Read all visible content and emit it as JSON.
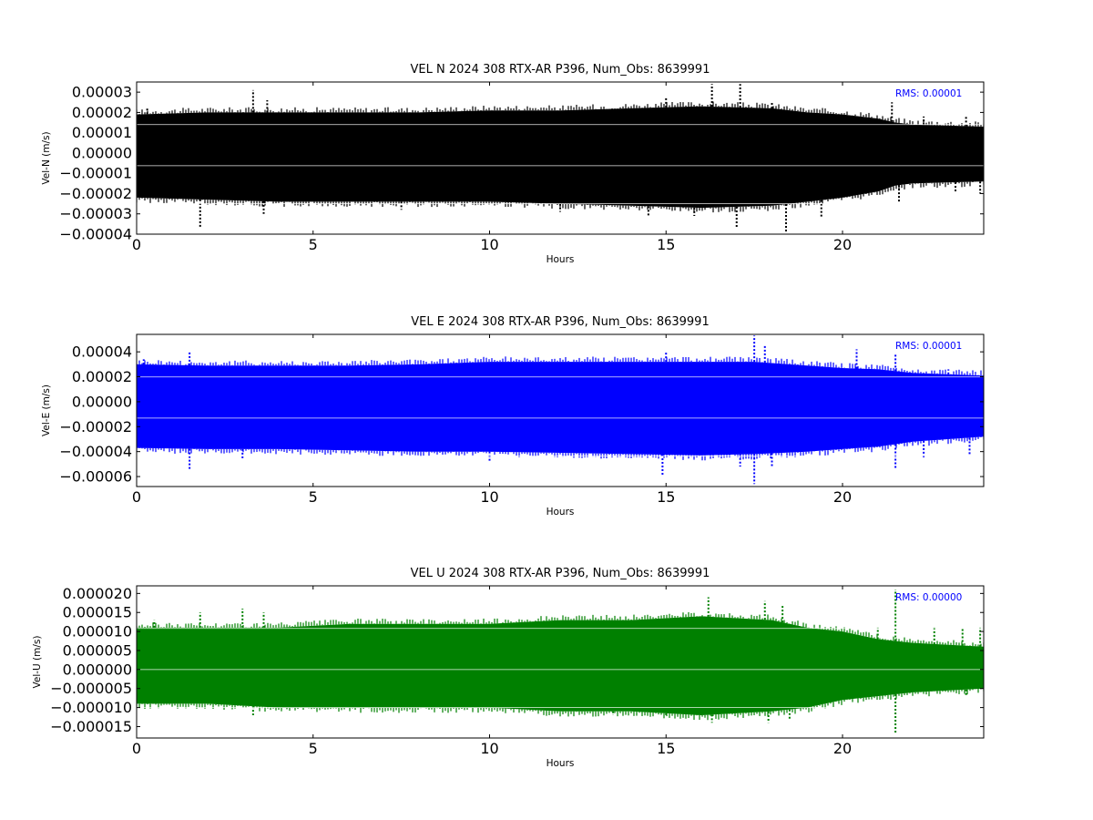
{
  "chart_data": [
    {
      "type": "scatter",
      "title": "VEL N 2024 308 RTX-AR  P396, Num_Obs: 8639991",
      "xlabel": "Hours",
      "ylabel": "Vel-N (m/s)",
      "xlim": [
        0,
        24
      ],
      "ylim": [
        -4e-05,
        3.5e-05
      ],
      "x_ticks": [
        0,
        5,
        10,
        15,
        20
      ],
      "x_tick_labels": [
        "0",
        "5",
        "10",
        "15",
        "20"
      ],
      "y_ticks": [
        3e-05,
        2e-05,
        1e-05,
        0.0,
        -1e-05,
        -2e-05,
        -3e-05,
        -4e-05
      ],
      "y_tick_labels": [
        "0.00003",
        "0.00002",
        "0.00001",
        "0.00000",
        "−0.00001",
        "−0.00002",
        "−0.00003",
        "−0.00004"
      ],
      "color": "#000000",
      "annotation": "RMS:  0.00001",
      "annotation_color": "#0000ff",
      "band_envelope": {
        "x": [
          0,
          2,
          4,
          6,
          8,
          10,
          12,
          14,
          16,
          18,
          19,
          20,
          21,
          21.5,
          22,
          24
        ],
        "upper": [
          1.9e-05,
          2e-05,
          2e-05,
          2e-05,
          2e-05,
          2.1e-05,
          2.1e-05,
          2.2e-05,
          2.3e-05,
          2.2e-05,
          2e-05,
          1.9e-05,
          1.7e-05,
          1.5e-05,
          1.4e-05,
          1.3e-05
        ],
        "lower": [
          -2.2e-05,
          -2.3e-05,
          -2.4e-05,
          -2.4e-05,
          -2.4e-05,
          -2.4e-05,
          -2.5e-05,
          -2.6e-05,
          -2.7e-05,
          -2.6e-05,
          -2.4e-05,
          -2.2e-05,
          -1.9e-05,
          -1.6e-05,
          -1.5e-05,
          -1.4e-05
        ]
      },
      "spikes": [
        {
          "x": 0.3,
          "y": 2.2e-05
        },
        {
          "x": 1.8,
          "y": -3.7e-05
        },
        {
          "x": 3.3,
          "y": 3.1e-05
        },
        {
          "x": 3.6,
          "y": -3e-05
        },
        {
          "x": 3.7,
          "y": 2.6e-05
        },
        {
          "x": 7.5,
          "y": -2.8e-05
        },
        {
          "x": 12.0,
          "y": -2.9e-05
        },
        {
          "x": 14.5,
          "y": -3.1e-05
        },
        {
          "x": 15.0,
          "y": 2.7e-05
        },
        {
          "x": 15.8,
          "y": -3.1e-05
        },
        {
          "x": 16.3,
          "y": 3.4e-05
        },
        {
          "x": 17.0,
          "y": -3.7e-05
        },
        {
          "x": 17.1,
          "y": 3.4e-05
        },
        {
          "x": 18.0,
          "y": 2.5e-05
        },
        {
          "x": 18.4,
          "y": -3.9e-05
        },
        {
          "x": 19.4,
          "y": -3.2e-05
        },
        {
          "x": 21.4,
          "y": 2.5e-05
        },
        {
          "x": 21.6,
          "y": -2.4e-05
        },
        {
          "x": 22.3,
          "y": 1.8e-05
        },
        {
          "x": 23.2,
          "y": -1.9e-05
        },
        {
          "x": 23.5,
          "y": 1.8e-05
        },
        {
          "x": 23.9,
          "y": -2e-05
        }
      ]
    },
    {
      "type": "scatter",
      "title": "VEL E 2024 308 RTX-AR  P396, Num_Obs: 8639991",
      "xlabel": "Hours",
      "ylabel": "Vel-E (m/s)",
      "xlim": [
        0,
        24
      ],
      "ylim": [
        -6.8e-05,
        5.4e-05
      ],
      "x_ticks": [
        0,
        5,
        10,
        15,
        20
      ],
      "x_tick_labels": [
        "0",
        "5",
        "10",
        "15",
        "20"
      ],
      "y_ticks": [
        4e-05,
        2e-05,
        0.0,
        -2e-05,
        -4e-05,
        -6e-05
      ],
      "y_tick_labels": [
        "0.00004",
        "0.00002",
        "0.00000",
        "−0.00002",
        "−0.00004",
        "−0.00006"
      ],
      "color": "#0000ff",
      "annotation": "RMS:  0.00001",
      "annotation_color": "#0000ff",
      "band_envelope": {
        "x": [
          0,
          2,
          4,
          6,
          8,
          10,
          12,
          14,
          16,
          17.5,
          19,
          20,
          21,
          22,
          24
        ],
        "upper": [
          3e-05,
          2.9e-05,
          2.9e-05,
          2.9e-05,
          3e-05,
          3.2e-05,
          3.2e-05,
          3.2e-05,
          3.2e-05,
          3.2e-05,
          2.9e-05,
          2.7e-05,
          2.6e-05,
          2.3e-05,
          2.1e-05
        ],
        "lower": [
          -3.7e-05,
          -3.8e-05,
          -3.8e-05,
          -3.9e-05,
          -4e-05,
          -4e-05,
          -4.1e-05,
          -4.2e-05,
          -4.3e-05,
          -4.2e-05,
          -4e-05,
          -3.8e-05,
          -3.6e-05,
          -3.2e-05,
          -2.8e-05
        ]
      },
      "spikes": [
        {
          "x": 0.2,
          "y": 3.4e-05
        },
        {
          "x": 1.5,
          "y": -5.4e-05
        },
        {
          "x": 1.5,
          "y": 4e-05
        },
        {
          "x": 3.0,
          "y": -4.6e-05
        },
        {
          "x": 10.0,
          "y": -4.8e-05
        },
        {
          "x": 14.9,
          "y": -6e-05
        },
        {
          "x": 15.0,
          "y": 4e-05
        },
        {
          "x": 17.1,
          "y": -5.2e-05
        },
        {
          "x": 17.5,
          "y": 5.3e-05
        },
        {
          "x": 17.5,
          "y": -6.6e-05
        },
        {
          "x": 17.8,
          "y": 4.5e-05
        },
        {
          "x": 18.0,
          "y": -5.2e-05
        },
        {
          "x": 20.4,
          "y": 4.2e-05
        },
        {
          "x": 21.5,
          "y": 3.8e-05
        },
        {
          "x": 21.5,
          "y": -5.4e-05
        },
        {
          "x": 22.3,
          "y": -4.6e-05
        },
        {
          "x": 23.0,
          "y": 2.6e-05
        },
        {
          "x": 23.6,
          "y": -4.2e-05
        }
      ]
    },
    {
      "type": "scatter",
      "title": "VEL U 2024 308 RTX-AR  P396, Num_Obs: 8639991",
      "xlabel": "Hours",
      "ylabel": "Vel-U (m/s)",
      "xlim": [
        0,
        24
      ],
      "ylim": [
        -1.8e-05,
        2.2e-05
      ],
      "x_ticks": [
        0,
        5,
        10,
        15,
        20
      ],
      "x_tick_labels": [
        "0",
        "5",
        "10",
        "15",
        "20"
      ],
      "y_ticks": [
        2e-05,
        1.5e-05,
        1e-05,
        5e-06,
        0.0,
        -5e-06,
        -1e-05,
        -1.5e-05
      ],
      "y_tick_labels": [
        "0.000020",
        "0.000015",
        "0.000010",
        "0.000005",
        "0.000000",
        "−0.000005",
        "−0.000010",
        "−0.000015"
      ],
      "color": "#008000",
      "annotation": "RMS:  0.00000",
      "annotation_color": "#0000ff",
      "band_envelope": {
        "x": [
          0,
          2,
          4,
          6,
          8,
          10,
          12,
          14,
          16,
          18,
          19,
          20,
          21,
          22,
          24
        ],
        "upper": [
          1.1e-05,
          1.1e-05,
          1.1e-05,
          1.2e-05,
          1.2e-05,
          1.2e-05,
          1.3e-05,
          1.3e-05,
          1.4e-05,
          1.3e-05,
          1.1e-05,
          1e-05,
          8e-06,
          7e-06,
          6e-06
        ],
        "lower": [
          -9e-06,
          -9e-06,
          -1e-05,
          -1e-05,
          -1e-05,
          -1e-05,
          -1.1e-05,
          -1.1e-05,
          -1.2e-05,
          -1.1e-05,
          -1e-05,
          -8e-06,
          -7e-06,
          -6e-06,
          -5e-06
        ]
      },
      "spikes": [
        {
          "x": 0.5,
          "y": 1.3e-05
        },
        {
          "x": 1.8,
          "y": 1.5e-05
        },
        {
          "x": 3.0,
          "y": 1.6e-05
        },
        {
          "x": 3.3,
          "y": -1.2e-05
        },
        {
          "x": 3.6,
          "y": 1.5e-05
        },
        {
          "x": 13.5,
          "y": -1.2e-05
        },
        {
          "x": 15.0,
          "y": -1.2e-05
        },
        {
          "x": 16.2,
          "y": 1.9e-05
        },
        {
          "x": 16.3,
          "y": -1.4e-05
        },
        {
          "x": 17.8,
          "y": 1.8e-05
        },
        {
          "x": 17.9,
          "y": -1.4e-05
        },
        {
          "x": 18.3,
          "y": 1.7e-05
        },
        {
          "x": 18.5,
          "y": -1.3e-05
        },
        {
          "x": 21.0,
          "y": 1.1e-05
        },
        {
          "x": 21.5,
          "y": 2.1e-05
        },
        {
          "x": 21.5,
          "y": -1.7e-05
        },
        {
          "x": 22.6,
          "y": 1.1e-05
        },
        {
          "x": 23.4,
          "y": 1.1e-05
        },
        {
          "x": 23.5,
          "y": -7e-06
        },
        {
          "x": 23.9,
          "y": 1.1e-05
        }
      ]
    }
  ]
}
